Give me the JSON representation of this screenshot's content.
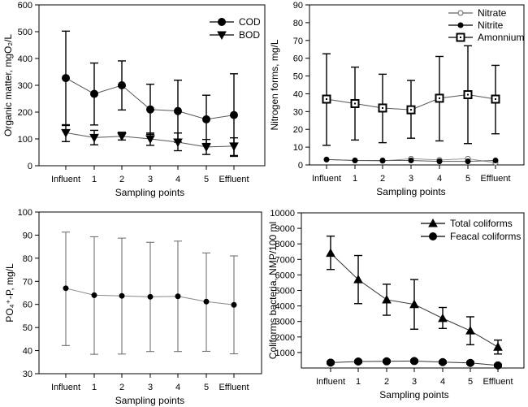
{
  "chart_data": [
    {
      "type": "line",
      "categories": [
        "Influent",
        "1",
        "2",
        "3",
        "4",
        "5",
        "Effluent"
      ],
      "xlabel": "Sampling points",
      "ylabel": "Organic matter, mgO₂/L",
      "ylim": [
        0,
        600
      ],
      "yticks": [
        0,
        100,
        200,
        300,
        400,
        500,
        600
      ],
      "legend": "top-right",
      "series": [
        {
          "name": "COD",
          "marker": "filled-circle",
          "values": [
            327,
            268,
            300,
            210,
            204,
            173,
            189
          ],
          "upper": [
            502,
            383,
            391,
            304,
            319,
            263,
            343
          ],
          "lower": [
            153,
            152,
            208,
            117,
            88,
            83,
            35
          ]
        },
        {
          "name": "BOD",
          "marker": "filled-triangle-down",
          "values": [
            123,
            105,
            110,
            100,
            88,
            70,
            73
          ],
          "upper": [
            150,
            132,
            125,
            122,
            122,
            98,
            104
          ],
          "lower": [
            90,
            78,
            96,
            76,
            56,
            42,
            38
          ]
        }
      ]
    },
    {
      "type": "line",
      "categories": [
        "Influent",
        "1",
        "2",
        "3",
        "4",
        "5",
        "Effluent"
      ],
      "xlabel": "Sampling points",
      "ylabel": "Nitrogen forms, mg/L",
      "ylim": [
        0,
        90
      ],
      "yticks": [
        0,
        10,
        20,
        30,
        40,
        50,
        60,
        70,
        80,
        90
      ],
      "legend": "top-right",
      "series": [
        {
          "name": "Nitrate",
          "marker": "open-circle",
          "values": [
            3,
            2.5,
            2.2,
            3.5,
            2.8,
            3.5,
            1.2
          ]
        },
        {
          "name": "Nitrite",
          "marker": "small-filled-circle",
          "values": [
            3,
            2.5,
            2.5,
            2.5,
            2,
            2,
            2.5
          ]
        },
        {
          "name": "Amonnium",
          "marker": "open-square",
          "values": [
            37,
            34.5,
            32,
            31,
            37.5,
            39.5,
            37
          ],
          "upper": [
            62.5,
            55,
            51,
            47.5,
            61,
            67,
            56
          ],
          "lower": [
            11,
            14,
            12.5,
            15,
            13.5,
            12,
            17.5
          ]
        }
      ]
    },
    {
      "type": "line",
      "categories": [
        "Influent",
        "1",
        "2",
        "3",
        "4",
        "5",
        "Effluent"
      ],
      "xlabel": "Sampling points",
      "ylabel": "PO₄⁺-P, mg/L",
      "ylim": [
        30,
        100
      ],
      "yticks": [
        30,
        40,
        50,
        60,
        70,
        80,
        90,
        100
      ],
      "series": [
        {
          "marker": "small-filled-circle",
          "values": [
            67,
            64,
            63.7,
            63.3,
            63.5,
            61.2,
            59.8
          ],
          "upper": [
            91.3,
            89.3,
            88.7,
            86.9,
            87.4,
            82.3,
            81
          ],
          "lower": [
            42.2,
            38.4,
            38.5,
            39.6,
            39.6,
            39.7,
            38.6
          ]
        }
      ]
    },
    {
      "type": "line",
      "categories": [
        "Influent",
        "1",
        "2",
        "3",
        "4",
        "5",
        "Effluent"
      ],
      "xlabel": "Sampling points",
      "ylabel": "Coliforms bacteria, NMP/100 ml",
      "ylim": [
        0,
        10000
      ],
      "yticks": [
        1000,
        2000,
        3000,
        4000,
        5000,
        6000,
        7000,
        8000,
        9000,
        10000
      ],
      "legend": "top-right",
      "series": [
        {
          "name": "Total coliforms",
          "marker": "filled-triangle-up",
          "values": [
            7400,
            5700,
            4400,
            4100,
            3200,
            2400,
            1350
          ],
          "upper": [
            8500,
            7250,
            5400,
            5700,
            3900,
            3300,
            1800
          ],
          "lower": [
            6350,
            4150,
            3400,
            2500,
            2550,
            1500,
            900
          ]
        },
        {
          "name": "Feacal coliforms",
          "marker": "filled-circle",
          "values": [
            350,
            420,
            430,
            450,
            380,
            330,
            170
          ],
          "upper": [
            430,
            500,
            510,
            530,
            460,
            410,
            250
          ],
          "lower": [
            270,
            340,
            350,
            370,
            300,
            250,
            90
          ]
        }
      ]
    }
  ]
}
